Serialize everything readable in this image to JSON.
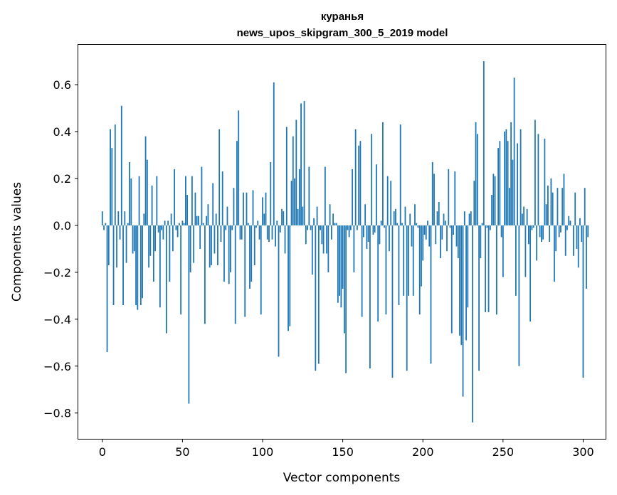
{
  "chart_data": {
    "type": "bar",
    "title": "куранья",
    "subtitle": "news_upos_skipgram_300_5_2019 model",
    "xlabel": "Vector components",
    "ylabel": "Components values",
    "xlim": [
      -15,
      314
    ],
    "ylim": [
      -0.91,
      0.77
    ],
    "xticks": [
      0,
      50,
      100,
      150,
      200,
      250,
      300
    ],
    "yticks": [
      -0.8,
      -0.6,
      -0.4,
      -0.2,
      0.0,
      0.2,
      0.4,
      0.6
    ],
    "ytick_labels": [
      "−0.8",
      "−0.6",
      "−0.4",
      "−0.2",
      "0.0",
      "0.2",
      "0.4",
      "0.6"
    ],
    "color": "#1f77b4",
    "values": [
      0.06,
      -0.02,
      0.01,
      -0.54,
      -0.17,
      0.41,
      0.33,
      -0.34,
      0.43,
      -0.18,
      0.06,
      -0.06,
      0.51,
      -0.34,
      0.06,
      -0.16,
      0.01,
      0.27,
      0.2,
      -0.12,
      -0.11,
      -0.34,
      -0.36,
      0.21,
      -0.34,
      -0.31,
      0.05,
      0.38,
      0.28,
      -0.18,
      -0.13,
      0.17,
      -0.24,
      -0.11,
      0.21,
      -0.03,
      -0.35,
      -0.02,
      -0.06,
      0.02,
      -0.46,
      0.02,
      -0.24,
      0.05,
      -0.11,
      0.24,
      -0.02,
      -0.05,
      0.01,
      -0.38,
      0.02,
      0.01,
      0.21,
      0.13,
      -0.76,
      -0.2,
      0.21,
      -0.16,
      0.14,
      0.04,
      0.04,
      -0.1,
      0.25,
      0.01,
      -0.42,
      0.04,
      0.09,
      -0.18,
      -0.17,
      0.18,
      -0.12,
      0.05,
      -0.17,
      0.41,
      -0.07,
      0.23,
      -0.24,
      -0.02,
      0.08,
      -0.25,
      -0.2,
      -0.02,
      0.16,
      -0.42,
      0.36,
      0.49,
      -0.06,
      -0.06,
      0.14,
      -0.39,
      0.14,
      0.01,
      -0.27,
      -0.24,
      0.15,
      -0.17,
      -0.01,
      0.02,
      -0.06,
      -0.38,
      0.12,
      0.05,
      0.14,
      -0.06,
      -0.07,
      0.27,
      -0.06,
      0.61,
      -0.09,
      0.02,
      -0.56,
      -0.03,
      0.07,
      0.06,
      -0.12,
      0.42,
      -0.45,
      -0.43,
      0.19,
      0.38,
      0.2,
      0.45,
      0.07,
      0.24,
      0.52,
      0.08,
      0.53,
      -0.08,
      -0.02,
      0.25,
      -0.02,
      -0.21,
      0.03,
      -0.62,
      0.08,
      -0.59,
      -0.02,
      -0.08,
      -0.12,
      0.25,
      -0.12,
      -0.2,
      0.09,
      -0.06,
      0.05,
      0.01,
      0.01,
      -0.33,
      -0.3,
      -0.35,
      -0.27,
      -0.46,
      -0.63,
      -0.02,
      -0.05,
      -0.02,
      0.24,
      -0.2,
      0.41,
      -0.02,
      0.34,
      0.36,
      -0.39,
      -0.05,
      0.09,
      -0.1,
      -0.07,
      -0.61,
      0.39,
      -0.04,
      -0.03,
      0.26,
      -0.41,
      -0.08,
      0.02,
      0.44,
      -0.01,
      -0.38,
      0.21,
      -0.11,
      0.19,
      -0.65,
      0.06,
      0.07,
      0.01,
      -0.34,
      0.43,
      0.01,
      -0.3,
      0.08,
      -0.62,
      -0.3,
      0.05,
      -0.09,
      -0.3,
      0.09,
      0.01,
      -0.01,
      -0.38,
      -0.26,
      -0.15,
      -0.04,
      -0.06,
      0.02,
      -0.09,
      -0.59,
      0.27,
      0.22,
      -0.08,
      0.06,
      0.1,
      -0.14,
      -0.06,
      0.05,
      0.02,
      -0.11,
      0.24,
      -0.01,
      -0.46,
      -0.04,
      0.23,
      -0.09,
      -0.14,
      -0.47,
      -0.51,
      -0.73,
      0.06,
      -0.49,
      -0.35,
      0.05,
      0.06,
      -0.84,
      0.19,
      0.44,
      0.39,
      -0.62,
      -0.14,
      0.01,
      0.7,
      -0.37,
      -0.01,
      -0.37,
      -0.02,
      0.13,
      0.22,
      0.21,
      -0.38,
      0.33,
      0.36,
      -0.05,
      -0.22,
      0.4,
      0.41,
      0.36,
      0.16,
      0.44,
      0.28,
      0.63,
      -0.3,
      0.35,
      -0.6,
      0.41,
      0.05,
      0.08,
      -0.22,
      0.07,
      -0.08,
      -0.41,
      -0.02,
      -0.01,
      0.45,
      -0.15,
      0.39,
      -0.05,
      -0.07,
      -0.06,
      0.37,
      0.09,
      0.17,
      -0.07,
      0.2,
      0.14,
      -0.24,
      -0.11,
      0.16,
      -0.05,
      -0.03,
      0.16,
      0.22,
      -0.13,
      -0.02,
      0.04,
      0.02,
      0.0,
      -0.13,
      0.14,
      -0.1,
      -0.18,
      0.03,
      -0.07,
      -0.65,
      0.16,
      -0.27,
      -0.05
    ]
  }
}
